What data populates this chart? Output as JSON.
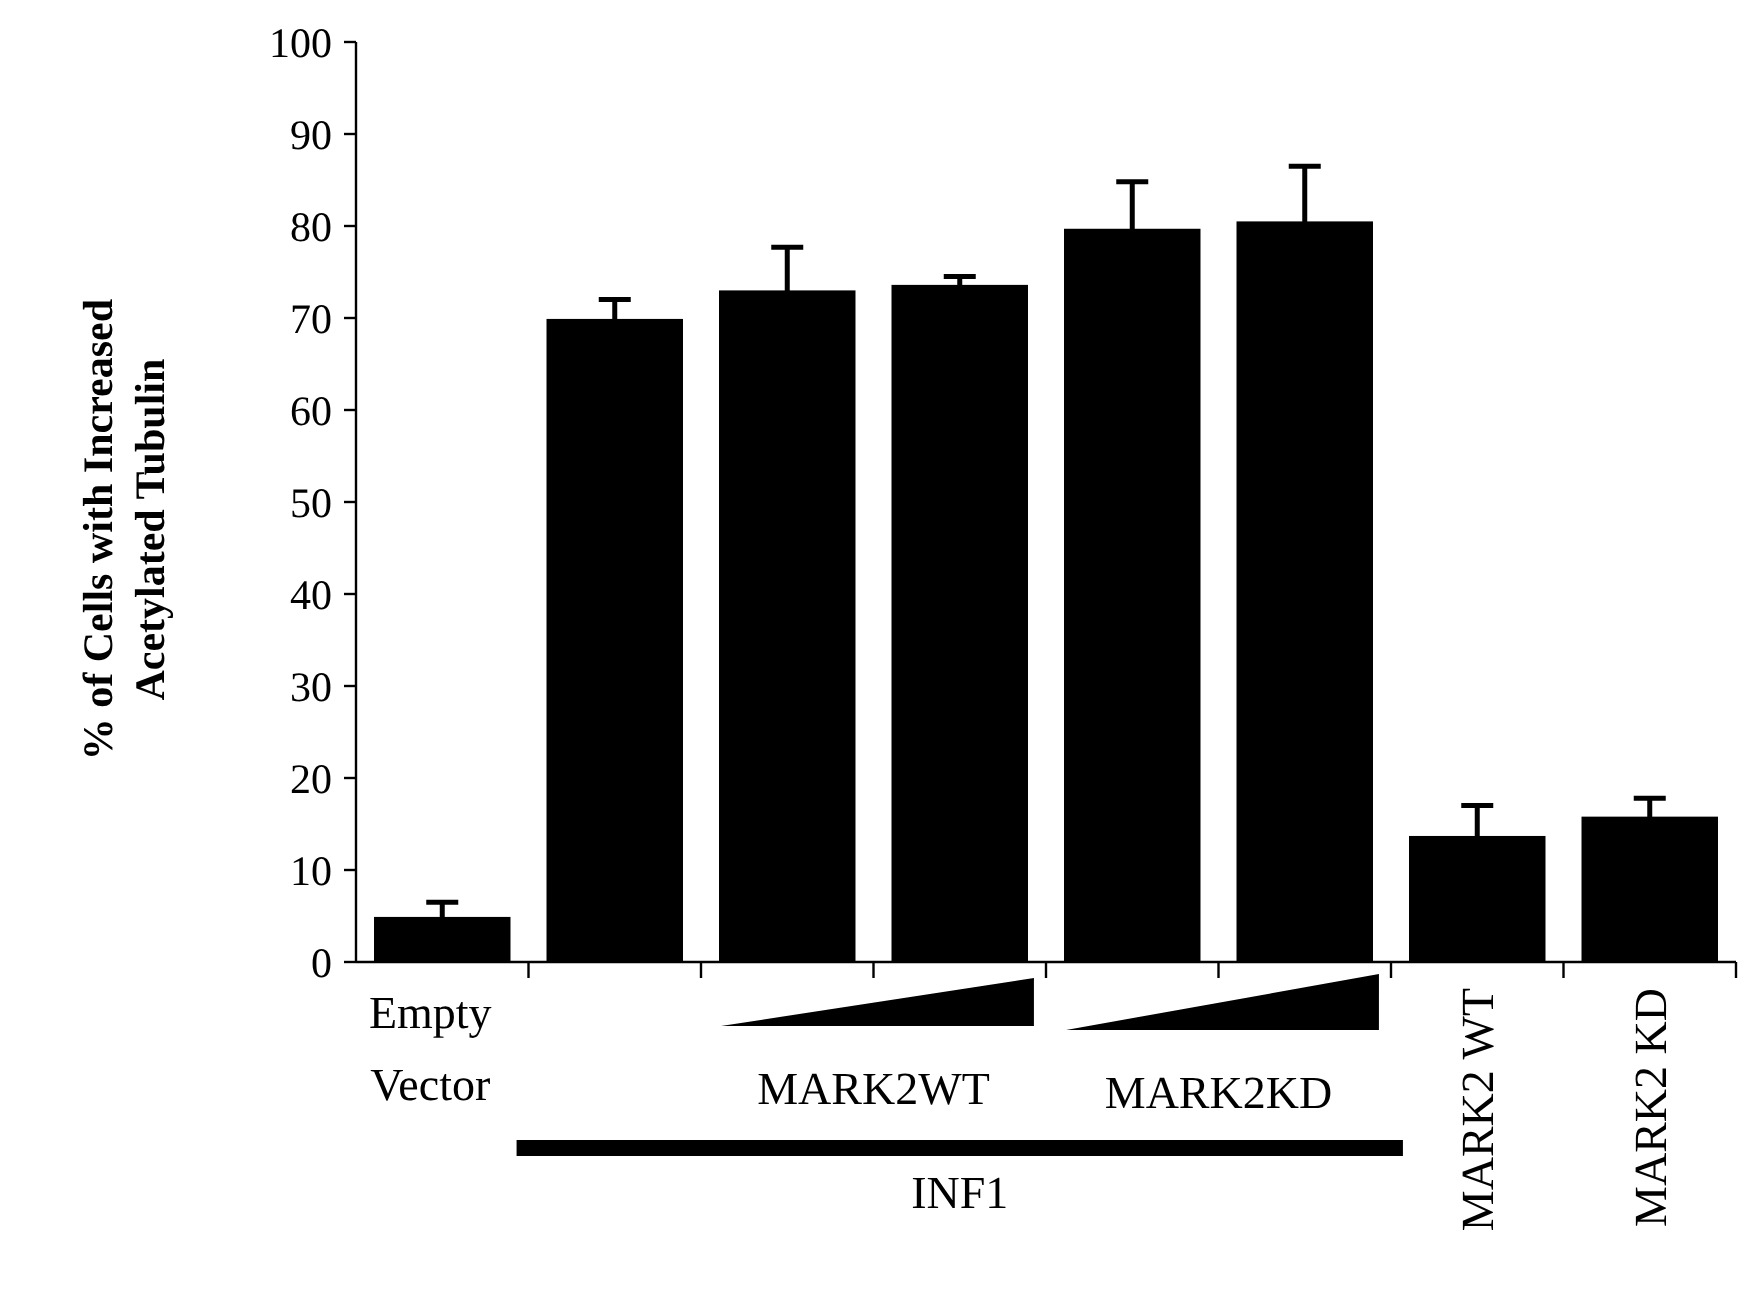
{
  "chart_data": {
    "type": "bar",
    "ylabel": "% of Cells with Increased Acetylated Tubulin",
    "categories": [
      "Empty Vector",
      null,
      null,
      null,
      null,
      null,
      "MARK2 WT",
      "MARK2 KD"
    ],
    "values": [
      4.9,
      69.9,
      73.0,
      73.6,
      79.7,
      80.5,
      13.7,
      15.8
    ],
    "errors": [
      1.6,
      2.1,
      4.7,
      0.9,
      5.1,
      6.0,
      3.3,
      2.0
    ],
    "color": "#000000",
    "ylim": [
      0,
      100
    ],
    "yticks": [
      0,
      10,
      20,
      30,
      40,
      50,
      60,
      70,
      80,
      90,
      100
    ],
    "annotations": [
      "MARK2WT",
      "MARK2KD",
      "INF1"
    ]
  }
}
